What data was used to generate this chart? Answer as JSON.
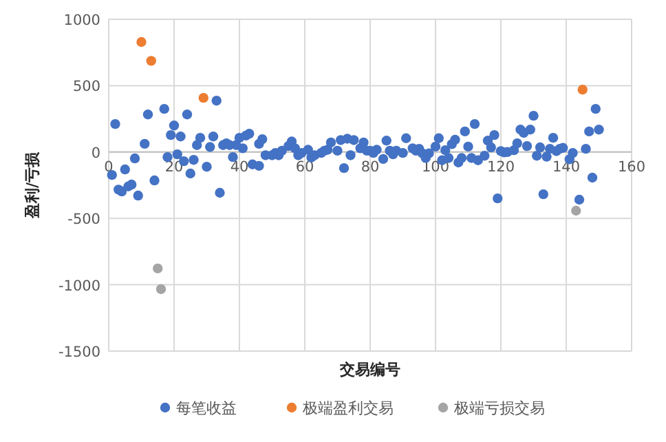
{
  "chart_data": {
    "type": "scatter",
    "xlabel": "交易编号",
    "ylabel": "盈利/亏损",
    "xlim": [
      0,
      160
    ],
    "ylim": [
      -1500,
      1000
    ],
    "xticks": [
      0,
      20,
      40,
      60,
      80,
      100,
      120,
      140,
      160
    ],
    "yticks": [
      -1500,
      -1000,
      -500,
      0,
      500,
      1000
    ],
    "grid": true,
    "legend": "bottom",
    "marker": "circle",
    "series": [
      {
        "name": "每笔收益",
        "color": "#4472c4",
        "x": [
          1,
          2,
          3,
          4,
          5,
          6,
          7,
          8,
          9,
          11,
          12,
          14,
          17,
          18,
          19,
          20,
          21,
          22,
          23,
          24,
          25,
          26,
          27,
          28,
          30,
          31,
          32,
          33,
          34,
          35,
          36,
          37,
          38,
          39,
          40,
          41,
          42,
          43,
          44,
          46,
          46,
          47,
          48,
          50,
          51,
          52,
          53,
          55,
          56,
          57,
          58,
          59,
          61,
          62,
          63,
          65,
          66,
          67,
          68,
          70,
          71,
          72,
          73,
          74,
          75,
          77,
          78,
          79,
          80,
          81,
          82,
          84,
          85,
          86,
          87,
          88,
          90,
          91,
          93,
          94,
          95,
          96,
          97,
          98,
          100,
          101,
          102,
          103,
          104,
          105,
          106,
          107,
          108,
          109,
          110,
          111,
          112,
          113,
          115,
          116,
          117,
          118,
          119,
          120,
          121,
          122,
          124,
          125,
          126,
          127,
          128,
          129,
          130,
          131,
          132,
          133,
          134,
          135,
          136,
          137,
          138,
          139,
          141,
          142,
          144,
          146,
          147,
          148,
          149,
          150
        ],
        "values": [
          -173,
          211,
          -283,
          -297,
          -131,
          -259,
          -245,
          -48,
          -328,
          62,
          283,
          -214,
          325,
          -38,
          128,
          200,
          -17,
          117,
          -69,
          283,
          -162,
          -59,
          52,
          107,
          -111,
          38,
          117,
          387,
          -307,
          52,
          66,
          52,
          -38,
          52,
          107,
          28,
          124,
          138,
          -93,
          62,
          -104,
          97,
          -24,
          -24,
          -7,
          -24,
          10,
          45,
          79,
          28,
          -24,
          -7,
          17,
          -41,
          -24,
          -7,
          10,
          17,
          72,
          10,
          90,
          -121,
          100,
          -24,
          90,
          28,
          72,
          10,
          10,
          -7,
          17,
          -52,
          86,
          10,
          -17,
          10,
          -7,
          104,
          28,
          10,
          24,
          -10,
          -45,
          -10,
          41,
          104,
          -62,
          14,
          -45,
          59,
          93,
          -79,
          -45,
          155,
          41,
          -45,
          211,
          -62,
          -28,
          86,
          35,
          128,
          -349,
          7,
          -3,
          0,
          14,
          66,
          169,
          145,
          45,
          169,
          273,
          -28,
          35,
          -318,
          -35,
          24,
          107,
          7,
          24,
          31,
          -55,
          -7,
          -359,
          24,
          155,
          -193,
          325,
          169
        ]
      },
      {
        "name": "极端盈利交易",
        "color": "#ed7d31",
        "x": [
          10,
          13,
          29,
          145
        ],
        "values": [
          829,
          687,
          408,
          470
        ]
      },
      {
        "name": "极端亏损交易",
        "color": "#a5a5a5",
        "x": [
          15,
          16,
          143
        ],
        "values": [
          -877,
          -1033,
          -442
        ]
      }
    ]
  }
}
